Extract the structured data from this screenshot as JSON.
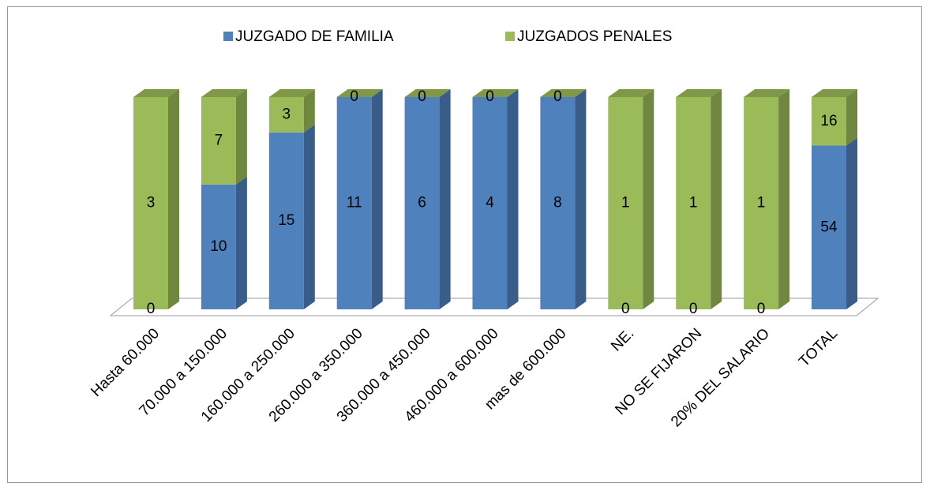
{
  "chart_data": {
    "type": "bar",
    "stacking": "percent",
    "categories": [
      "Hasta 60.000",
      "70.000 a 150.000",
      "160.000  a 250.000",
      "260.000 a 350.000",
      "360.000 a 450.000",
      "460.000 a 600.000",
      "mas de 600.000",
      "NE.",
      "NO SE FIJARON",
      "20% DEL SALARIO",
      "TOTAL"
    ],
    "series": [
      {
        "name": "JUZGADO DE FAMILIA",
        "color": "#4f81bd",
        "values": [
          0,
          10,
          15,
          11,
          6,
          4,
          8,
          0,
          0,
          0,
          54
        ]
      },
      {
        "name": "JUZGADOS PENALES",
        "color": "#9bbb59",
        "values": [
          3,
          7,
          3,
          0,
          0,
          0,
          0,
          1,
          1,
          1,
          16
        ]
      }
    ]
  }
}
